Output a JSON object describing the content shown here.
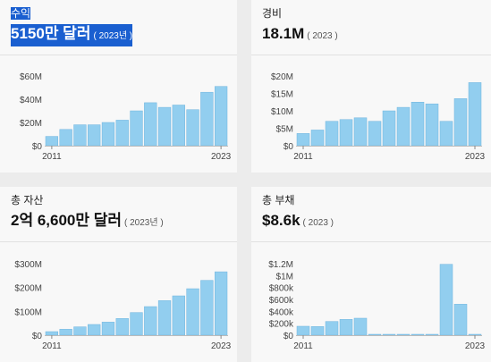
{
  "colors": {
    "bar": "#92ceef",
    "bar_stroke": "#6fb4de",
    "axis_text": "#444",
    "grid": "#e2e2e2"
  },
  "cards": [
    {
      "title": "수익",
      "value": "5150만 달러",
      "year": "( 2023년 )",
      "selected": true
    },
    {
      "title": "경비",
      "value": "18.1M",
      "year": "( 2023 )",
      "selected": false
    },
    {
      "title": "총 자산",
      "value": "2억 6,600만 달러",
      "year": "( 2023년 )",
      "selected": false
    },
    {
      "title": "총 부채",
      "value": "$8.6k",
      "year": "( 2023 )",
      "selected": false
    }
  ],
  "chart_data": [
    {
      "type": "bar",
      "title": "수익",
      "x": [
        2011,
        2012,
        2013,
        2014,
        2015,
        2016,
        2017,
        2018,
        2019,
        2020,
        2021,
        2022,
        2023
      ],
      "x_tick_labels": [
        "2011",
        "2023"
      ],
      "values": [
        8,
        14,
        18,
        18,
        20,
        22,
        30,
        37,
        33,
        35,
        31,
        46,
        51
      ],
      "unit": "M",
      "y_ticks": [
        "$0",
        "$20M",
        "$40M",
        "$60M"
      ],
      "y_tick_values": [
        0,
        20,
        40,
        60
      ],
      "ylim": [
        0,
        60
      ],
      "grid": false
    },
    {
      "type": "bar",
      "title": "경비",
      "x": [
        2011,
        2012,
        2013,
        2014,
        2015,
        2016,
        2017,
        2018,
        2019,
        2020,
        2021,
        2022,
        2023
      ],
      "x_tick_labels": [
        "2011",
        "2023"
      ],
      "values": [
        3.5,
        4.5,
        7,
        7.5,
        8,
        7,
        10,
        11,
        12.5,
        12,
        7,
        13.5,
        18.1
      ],
      "unit": "M",
      "y_ticks": [
        "$0",
        "$5M",
        "$10M",
        "$15M",
        "$20M"
      ],
      "y_tick_values": [
        0,
        5,
        10,
        15,
        20
      ],
      "ylim": [
        0,
        20
      ],
      "grid": false
    },
    {
      "type": "bar",
      "title": "총 자산",
      "x": [
        2011,
        2012,
        2013,
        2014,
        2015,
        2016,
        2017,
        2018,
        2019,
        2020,
        2021,
        2022,
        2023
      ],
      "x_tick_labels": [
        "2011",
        "2023"
      ],
      "values": [
        15,
        25,
        35,
        45,
        55,
        70,
        95,
        120,
        145,
        165,
        195,
        230,
        266
      ],
      "unit": "M",
      "y_ticks": [
        "$0",
        "$100M",
        "$200M",
        "$300M"
      ],
      "y_tick_values": [
        0,
        100,
        200,
        300
      ],
      "ylim": [
        0,
        300
      ],
      "grid": false
    },
    {
      "type": "bar",
      "title": "총 부채",
      "x": [
        2011,
        2012,
        2013,
        2014,
        2015,
        2016,
        2017,
        2018,
        2019,
        2020,
        2021,
        2022,
        2023
      ],
      "x_tick_labels": [
        "2011",
        "2023"
      ],
      "values": [
        150,
        145,
        230,
        265,
        285,
        8,
        8,
        8,
        8,
        8,
        1190,
        520,
        8.6
      ],
      "unit": "k",
      "y_ticks": [
        "$0",
        "$200k",
        "$400k",
        "$600k",
        "$800k",
        "$1M",
        "$1.2M"
      ],
      "y_tick_values": [
        0,
        200,
        400,
        600,
        800,
        1000,
        1200
      ],
      "ylim": [
        0,
        1200
      ],
      "grid": false
    }
  ]
}
